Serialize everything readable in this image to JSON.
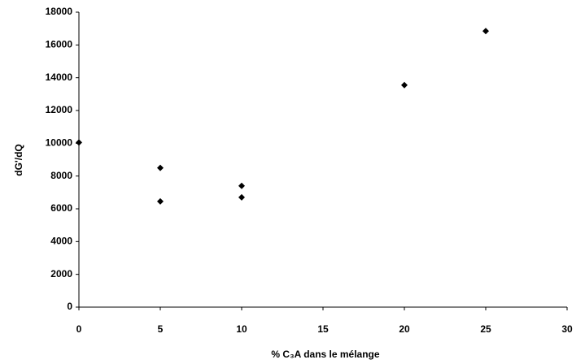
{
  "chart_data": {
    "type": "scatter",
    "x_label": "% C₃A dans le mélange",
    "y_label": "dG'/dQ",
    "x": [
      0,
      5,
      5,
      10,
      10,
      20,
      25
    ],
    "values": [
      10050,
      8500,
      6450,
      7400,
      6700,
      13550,
      16850
    ],
    "color": "#000000",
    "xlim": [
      0,
      30
    ],
    "xticks": [
      0,
      5,
      10,
      15,
      20,
      25,
      30
    ],
    "ylim": [
      0,
      18000
    ],
    "yticks": [
      0,
      2000,
      4000,
      6000,
      8000,
      10000,
      12000,
      14000,
      16000,
      18000
    ],
    "grid": false
  }
}
